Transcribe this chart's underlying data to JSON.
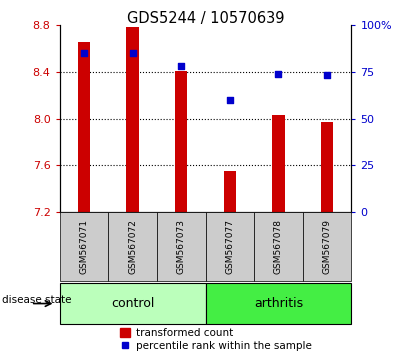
{
  "title": "GDS5244 / 10570639",
  "samples": [
    "GSM567071",
    "GSM567072",
    "GSM567073",
    "GSM567077",
    "GSM567078",
    "GSM567079"
  ],
  "bar_values": [
    8.65,
    8.78,
    8.41,
    7.55,
    8.03,
    7.97
  ],
  "bar_bottom": 7.2,
  "percentile_values": [
    85,
    85,
    78,
    60,
    74,
    73
  ],
  "ylim_left": [
    7.2,
    8.8
  ],
  "ylim_right": [
    0,
    100
  ],
  "yticks_left": [
    7.2,
    7.6,
    8.0,
    8.4,
    8.8
  ],
  "yticks_right": [
    0,
    25,
    50,
    75,
    100
  ],
  "ytick_labels_right": [
    "0",
    "25",
    "50",
    "75",
    "100%"
  ],
  "bar_color": "#cc0000",
  "dot_color": "#0000cc",
  "control_color": "#bbffbb",
  "arthritis_color": "#44ee44",
  "tickbox_color": "#cccccc",
  "control_label": "control",
  "arthritis_label": "arthritis",
  "disease_label": "disease state",
  "legend_bar_label": "transformed count",
  "legend_dot_label": "percentile rank within the sample",
  "n_control": 3,
  "n_arthritis": 3,
  "fig_width": 4.11,
  "fig_height": 3.54
}
